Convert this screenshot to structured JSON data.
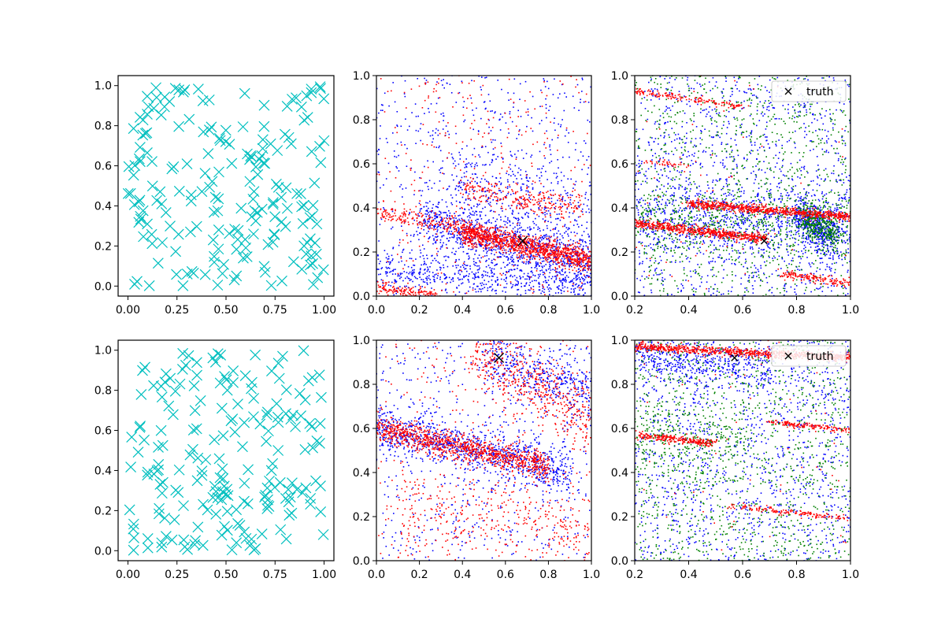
{
  "figure": {
    "title": "",
    "rows": 2,
    "cols": 3
  },
  "colors": {
    "cyan": "#00bfbf",
    "blue": "#0000ff",
    "red": "#ff0000",
    "green": "#008000",
    "black": "#000000"
  },
  "chart_data": [
    {
      "id": "r1c1",
      "type": "scatter",
      "title": "",
      "xlabel": "",
      "ylabel": "",
      "xlim": [
        -0.05,
        1.05
      ],
      "ylim": [
        -0.05,
        1.05
      ],
      "xticks": [
        "0.00",
        "0.25",
        "0.50",
        "0.75",
        "1.00"
      ],
      "xtick_values": [
        0,
        0.25,
        0.5,
        0.75,
        1.0
      ],
      "yticks": [
        "0.0",
        "0.2",
        "0.4",
        "0.6",
        "0.8",
        "1.0"
      ],
      "ytick_values": [
        0,
        0.2,
        0.4,
        0.6,
        0.8,
        1.0
      ],
      "grid": false,
      "series": [
        {
          "name": "samples",
          "marker": "x",
          "color": "#00bfbf",
          "count": 200,
          "distribution": "uniform",
          "x_range": [
            0,
            1
          ],
          "y_range": [
            0,
            1
          ]
        }
      ]
    },
    {
      "id": "r1c2",
      "type": "scatter",
      "title": "",
      "xlabel": "",
      "ylabel": "",
      "xlim": [
        0,
        1
      ],
      "ylim": [
        0,
        1
      ],
      "xticks": [
        "0.0",
        "0.2",
        "0.4",
        "0.6",
        "0.8",
        "1.0"
      ],
      "xtick_values": [
        0,
        0.2,
        0.4,
        0.6,
        0.8,
        1.0
      ],
      "yticks": [
        "0.0",
        "0.2",
        "0.4",
        "0.6",
        "0.8",
        "1.0"
      ],
      "ytick_values": [
        0,
        0.2,
        0.4,
        0.6,
        0.8,
        1.0
      ],
      "grid": false,
      "series": [
        {
          "name": "blue",
          "color": "#0000ff",
          "marker": "point",
          "bands": [
            {
              "x0": 0.2,
              "y0": 0.34,
              "x1": 1.0,
              "y1": 0.15,
              "spread": 0.06,
              "n": 900
            },
            {
              "x0": 0.0,
              "y0": 0.12,
              "x1": 1.0,
              "y1": 0.05,
              "spread": 0.04,
              "n": 500
            },
            {
              "x0": 0.35,
              "y0": 0.55,
              "x1": 1.0,
              "y1": 0.33,
              "spread": 0.1,
              "n": 300
            }
          ],
          "uniform_n": 650
        },
        {
          "name": "red",
          "color": "#ff0000",
          "marker": "point",
          "bands": [
            {
              "x0": 0.4,
              "y0": 0.29,
              "x1": 1.0,
              "y1": 0.16,
              "spread": 0.025,
              "n": 1100
            },
            {
              "x0": 0.0,
              "y0": 0.38,
              "x1": 0.6,
              "y1": 0.27,
              "spread": 0.02,
              "n": 250
            },
            {
              "x0": 0.4,
              "y0": 0.48,
              "x1": 0.95,
              "y1": 0.41,
              "spread": 0.03,
              "n": 250
            },
            {
              "x0": 0.0,
              "y0": 0.04,
              "x1": 0.3,
              "y1": 0.0,
              "spread": 0.015,
              "n": 150
            }
          ],
          "uniform_n": 300
        }
      ],
      "truth": {
        "x": 0.68,
        "y": 0.25,
        "marker": "x",
        "color": "#000000"
      }
    },
    {
      "id": "r1c3",
      "type": "scatter",
      "title": "",
      "xlabel": "",
      "ylabel": "",
      "xlim": [
        0.2,
        1.0
      ],
      "ylim": [
        0,
        1
      ],
      "xticks": [
        "0.2",
        "0.4",
        "0.6",
        "0.8",
        "1.0"
      ],
      "xtick_values": [
        0.2,
        0.4,
        0.6,
        0.8,
        1.0
      ],
      "yticks": [
        "0.0",
        "0.2",
        "0.4",
        "0.6",
        "0.8",
        "1.0"
      ],
      "ytick_values": [
        0,
        0.2,
        0.4,
        0.6,
        0.8,
        1.0
      ],
      "grid": false,
      "legend": {
        "entries": [
          "truth"
        ],
        "placement": "top-right"
      },
      "series": [
        {
          "name": "blue",
          "color": "#0000ff",
          "marker": "point",
          "bands": [
            {
              "x0": 0.2,
              "y0": 0.36,
              "x1": 1.0,
              "y1": 0.34,
              "spread": 0.08,
              "n": 700
            },
            {
              "x0": 0.8,
              "y0": 0.37,
              "x1": 0.95,
              "y1": 0.25,
              "spread": 0.05,
              "n": 400
            }
          ],
          "uniform_n": 1200
        },
        {
          "name": "green",
          "color": "#008000",
          "marker": "point",
          "bands": [
            {
              "x0": 0.2,
              "y0": 0.35,
              "x1": 1.0,
              "y1": 0.32,
              "spread": 0.08,
              "n": 500
            },
            {
              "x0": 0.82,
              "y0": 0.36,
              "x1": 0.95,
              "y1": 0.27,
              "spread": 0.04,
              "n": 300
            }
          ],
          "uniform_n": 900
        },
        {
          "name": "red",
          "color": "#ff0000",
          "marker": "point",
          "bands": [
            {
              "x0": 0.4,
              "y0": 0.42,
              "x1": 1.0,
              "y1": 0.36,
              "spread": 0.01,
              "n": 700
            },
            {
              "x0": 0.2,
              "y0": 0.33,
              "x1": 0.68,
              "y1": 0.26,
              "spread": 0.01,
              "n": 600
            },
            {
              "x0": 0.2,
              "y0": 0.93,
              "x1": 0.6,
              "y1": 0.86,
              "spread": 0.008,
              "n": 160
            },
            {
              "x0": 0.75,
              "y0": 0.1,
              "x1": 1.0,
              "y1": 0.06,
              "spread": 0.01,
              "n": 150
            },
            {
              "x0": 0.25,
              "y0": 0.61,
              "x1": 0.4,
              "y1": 0.59,
              "spread": 0.006,
              "n": 40
            }
          ],
          "uniform_n": 60
        }
      ],
      "truth": {
        "x": 0.68,
        "y": 0.25,
        "marker": "x",
        "color": "#000000"
      }
    },
    {
      "id": "r2c1",
      "type": "scatter",
      "title": "",
      "xlabel": "",
      "ylabel": "",
      "xlim": [
        -0.05,
        1.05
      ],
      "ylim": [
        -0.05,
        1.05
      ],
      "xticks": [
        "0.00",
        "0.25",
        "0.50",
        "0.75",
        "1.00"
      ],
      "xtick_values": [
        0,
        0.25,
        0.5,
        0.75,
        1.0
      ],
      "yticks": [
        "0.0",
        "0.2",
        "0.4",
        "0.6",
        "0.8",
        "1.0"
      ],
      "ytick_values": [
        0,
        0.2,
        0.4,
        0.6,
        0.8,
        1.0
      ],
      "grid": false,
      "series": [
        {
          "name": "samples",
          "marker": "x",
          "color": "#00bfbf",
          "count": 200,
          "distribution": "uniform",
          "x_range": [
            0,
            1
          ],
          "y_range": [
            0,
            1
          ]
        }
      ]
    },
    {
      "id": "r2c2",
      "type": "scatter",
      "title": "",
      "xlabel": "",
      "ylabel": "",
      "xlim": [
        0,
        1
      ],
      "ylim": [
        0,
        1
      ],
      "xticks": [
        "0.0",
        "0.2",
        "0.4",
        "0.6",
        "0.8",
        "1.0"
      ],
      "xtick_values": [
        0,
        0.2,
        0.4,
        0.6,
        0.8,
        1.0
      ],
      "yticks": [
        "0.0",
        "0.2",
        "0.4",
        "0.6",
        "0.8",
        "1.0"
      ],
      "ytick_values": [
        0,
        0.2,
        0.4,
        0.6,
        0.8,
        1.0
      ],
      "grid": false,
      "series": [
        {
          "name": "blue",
          "color": "#0000ff",
          "marker": "point",
          "bands": [
            {
              "x0": 0.0,
              "y0": 0.6,
              "x1": 0.9,
              "y1": 0.4,
              "spread": 0.05,
              "n": 900
            },
            {
              "x0": 0.5,
              "y0": 0.95,
              "x1": 1.0,
              "y1": 0.75,
              "spread": 0.07,
              "n": 400
            }
          ],
          "uniform_n": 600
        },
        {
          "name": "red",
          "color": "#ff0000",
          "marker": "point",
          "bands": [
            {
              "x0": 0.0,
              "y0": 0.6,
              "x1": 0.8,
              "y1": 0.43,
              "spread": 0.03,
              "n": 1000
            },
            {
              "x0": 0.45,
              "y0": 0.95,
              "x1": 1.0,
              "y1": 0.65,
              "spread": 0.08,
              "n": 500
            },
            {
              "x0": 0.1,
              "y0": 0.25,
              "x1": 1.0,
              "y1": 0.12,
              "spread": 0.1,
              "n": 350
            }
          ],
          "uniform_n": 250
        }
      ],
      "truth": {
        "x": 0.57,
        "y": 0.92,
        "marker": "x",
        "color": "#000000"
      }
    },
    {
      "id": "r2c3",
      "type": "scatter",
      "title": "",
      "xlabel": "",
      "ylabel": "",
      "xlim": [
        0.2,
        1.0
      ],
      "ylim": [
        0,
        1
      ],
      "xticks": [
        "0.2",
        "0.4",
        "0.6",
        "0.8",
        "1.0"
      ],
      "xtick_values": [
        0.2,
        0.4,
        0.6,
        0.8,
        1.0
      ],
      "yticks": [
        "0.0",
        "0.2",
        "0.4",
        "0.6",
        "0.8",
        "1.0"
      ],
      "ytick_values": [
        0,
        0.2,
        0.4,
        0.6,
        0.8,
        1.0
      ],
      "grid": false,
      "legend": {
        "entries": [
          "truth"
        ],
        "placement": "top-right"
      },
      "series": [
        {
          "name": "blue",
          "color": "#0000ff",
          "marker": "point",
          "bands": [
            {
              "x0": 0.2,
              "y0": 0.93,
              "x1": 0.7,
              "y1": 0.88,
              "spread": 0.05,
              "n": 400
            }
          ],
          "uniform_n": 1300
        },
        {
          "name": "green",
          "color": "#008000",
          "marker": "point",
          "bands": [
            {
              "x0": 0.2,
              "y0": 0.6,
              "x1": 0.6,
              "y1": 0.5,
              "spread": 0.08,
              "n": 250
            }
          ],
          "uniform_n": 1100
        },
        {
          "name": "red",
          "color": "#ff0000",
          "marker": "point",
          "bands": [
            {
              "x0": 0.2,
              "y0": 0.97,
              "x1": 1.0,
              "y1": 0.92,
              "spread": 0.01,
              "n": 800
            },
            {
              "x0": 0.2,
              "y0": 0.57,
              "x1": 0.5,
              "y1": 0.53,
              "spread": 0.008,
              "n": 250
            },
            {
              "x0": 0.7,
              "y0": 0.63,
              "x1": 1.0,
              "y1": 0.59,
              "spread": 0.006,
              "n": 150
            },
            {
              "x0": 0.55,
              "y0": 0.25,
              "x1": 1.0,
              "y1": 0.19,
              "spread": 0.006,
              "n": 150
            }
          ],
          "uniform_n": 60
        }
      ],
      "truth": {
        "x": 0.57,
        "y": 0.92,
        "marker": "x",
        "color": "#000000"
      }
    }
  ]
}
